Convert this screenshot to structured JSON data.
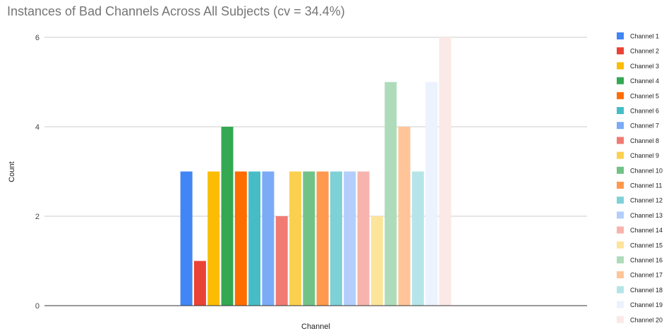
{
  "chart_data": {
    "type": "bar",
    "title": "Instances of Bad Channels Across All Subjects (cv = 34.4%)",
    "xlabel": "Channel",
    "ylabel": "Count",
    "ylim": [
      0,
      6
    ],
    "yticks": [
      0,
      2,
      4,
      6
    ],
    "grid": "horizontal",
    "legend_position": "right",
    "categories": [
      "Channel"
    ],
    "series": [
      {
        "name": "Channel 1",
        "value": 3,
        "color": "#4285F4"
      },
      {
        "name": "Channel 2",
        "value": 1,
        "color": "#EA4335"
      },
      {
        "name": "Channel 3",
        "value": 3,
        "color": "#FBBC04"
      },
      {
        "name": "Channel 4",
        "value": 4,
        "color": "#34A853"
      },
      {
        "name": "Channel 5",
        "value": 3,
        "color": "#FF6D01"
      },
      {
        "name": "Channel 6",
        "value": 3,
        "color": "#46BDC6"
      },
      {
        "name": "Channel 7",
        "value": 3,
        "color": "#7BAAF7"
      },
      {
        "name": "Channel 8",
        "value": 2,
        "color": "#F07B72"
      },
      {
        "name": "Channel 9",
        "value": 3,
        "color": "#FCD04F"
      },
      {
        "name": "Channel 10",
        "value": 3,
        "color": "#71C287"
      },
      {
        "name": "Channel 11",
        "value": 3,
        "color": "#FF994D"
      },
      {
        "name": "Channel 12",
        "value": 3,
        "color": "#7ED1D7"
      },
      {
        "name": "Channel 13",
        "value": 3,
        "color": "#B3CEFB"
      },
      {
        "name": "Channel 14",
        "value": 3,
        "color": "#F7B4AE"
      },
      {
        "name": "Channel 15",
        "value": 2,
        "color": "#FDE49B"
      },
      {
        "name": "Channel 16",
        "value": 5,
        "color": "#AEDCBA"
      },
      {
        "name": "Channel 17",
        "value": 4,
        "color": "#FFC599"
      },
      {
        "name": "Channel 18",
        "value": 3,
        "color": "#B5E5E8"
      },
      {
        "name": "Channel 19",
        "value": 5,
        "color": "#ECF2FE"
      },
      {
        "name": "Channel 20",
        "value": 6,
        "color": "#FBE9E7"
      }
    ]
  }
}
